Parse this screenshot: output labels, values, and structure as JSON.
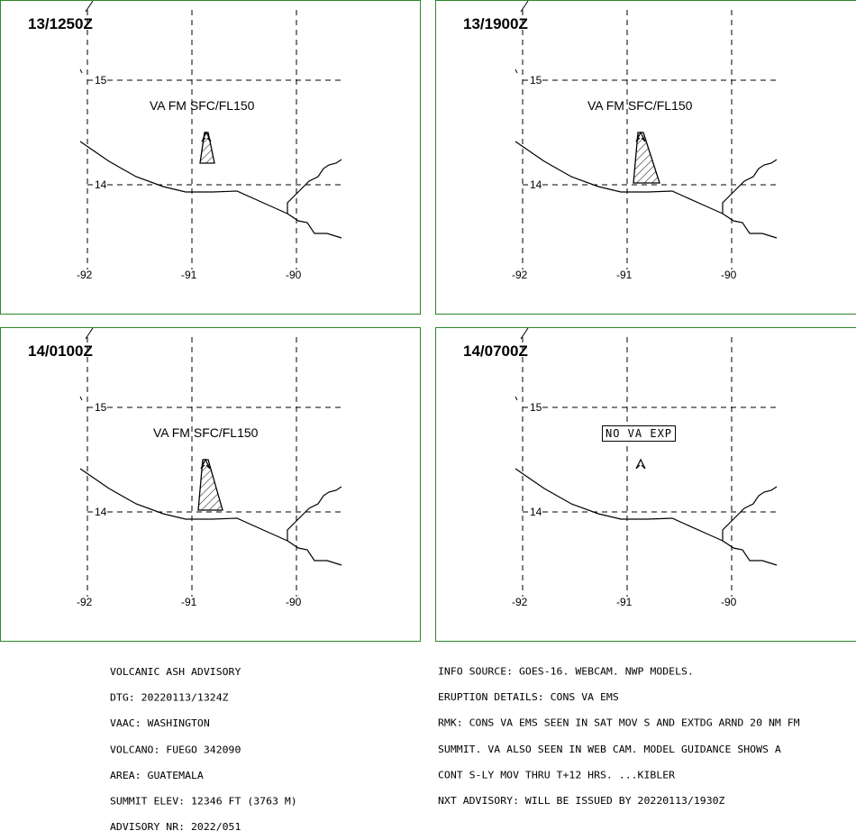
{
  "panels": [
    {
      "time": "13/1250Z",
      "label": "VA FM SFC/FL150",
      "label_style": "plain",
      "ash": "small"
    },
    {
      "time": "13/1900Z",
      "label": "VA FM SFC/FL150",
      "label_style": "plain",
      "ash": "large"
    },
    {
      "time": "14/0100Z",
      "label": "VA FM SFC/FL150",
      "label_style": "plain",
      "ash": "large"
    },
    {
      "time": "14/0700Z",
      "label": "NO VA EXP",
      "label_style": "boxed",
      "ash": "none"
    }
  ],
  "lat_labels": [
    "15",
    "14"
  ],
  "lon_labels": [
    "-92",
    "-91",
    "-90"
  ],
  "advisory_left": [
    "VOLCANIC ASH ADVISORY",
    "DTG: 20220113/1324Z",
    "VAAC: WASHINGTON",
    "VOLCANO: FUEGO 342090",
    "AREA: GUATEMALA",
    "SUMMIT ELEV: 12346 FT (3763 M)",
    "ADVISORY NR: 2022/051"
  ],
  "advisory_right": [
    "INFO SOURCE: GOES-16. WEBCAM. NWP MODELS.",
    "ERUPTION DETAILS: CONS VA EMS",
    "RMK: CONS VA EMS SEEN IN SAT MOV S AND EXTDG ARND 20 NM FM",
    "SUMMIT. VA ALSO SEEN IN WEB CAM. MODEL GUIDANCE SHOWS A",
    "CONT S-LY MOV THRU T+12 HRS. ...KIBLER",
    "NXT ADVISORY: WILL BE ISSUED BY 20220113/1930Z"
  ],
  "colors": {
    "panel_border": "#2a8a2a",
    "lines": "#000000",
    "background": "#ffffff"
  }
}
